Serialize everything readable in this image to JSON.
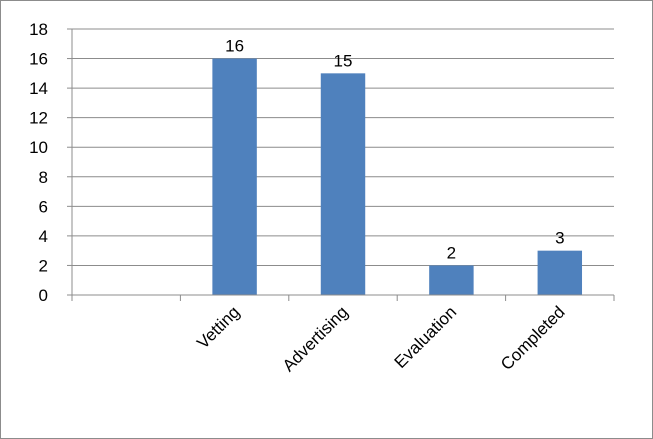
{
  "chart_data": {
    "type": "bar",
    "categories": [
      "",
      "Vetting",
      "Advertising",
      "Evaluation",
      "Completed"
    ],
    "values": [
      null,
      16,
      15,
      2,
      3
    ],
    "data_labels": [
      "",
      "16",
      "15",
      "2",
      "3"
    ],
    "ylim": [
      0,
      18
    ],
    "ytick_step": 2,
    "grid": true,
    "legend": "none",
    "bar_color": "#4f81bd",
    "grid_color": "#8c8c8c"
  }
}
